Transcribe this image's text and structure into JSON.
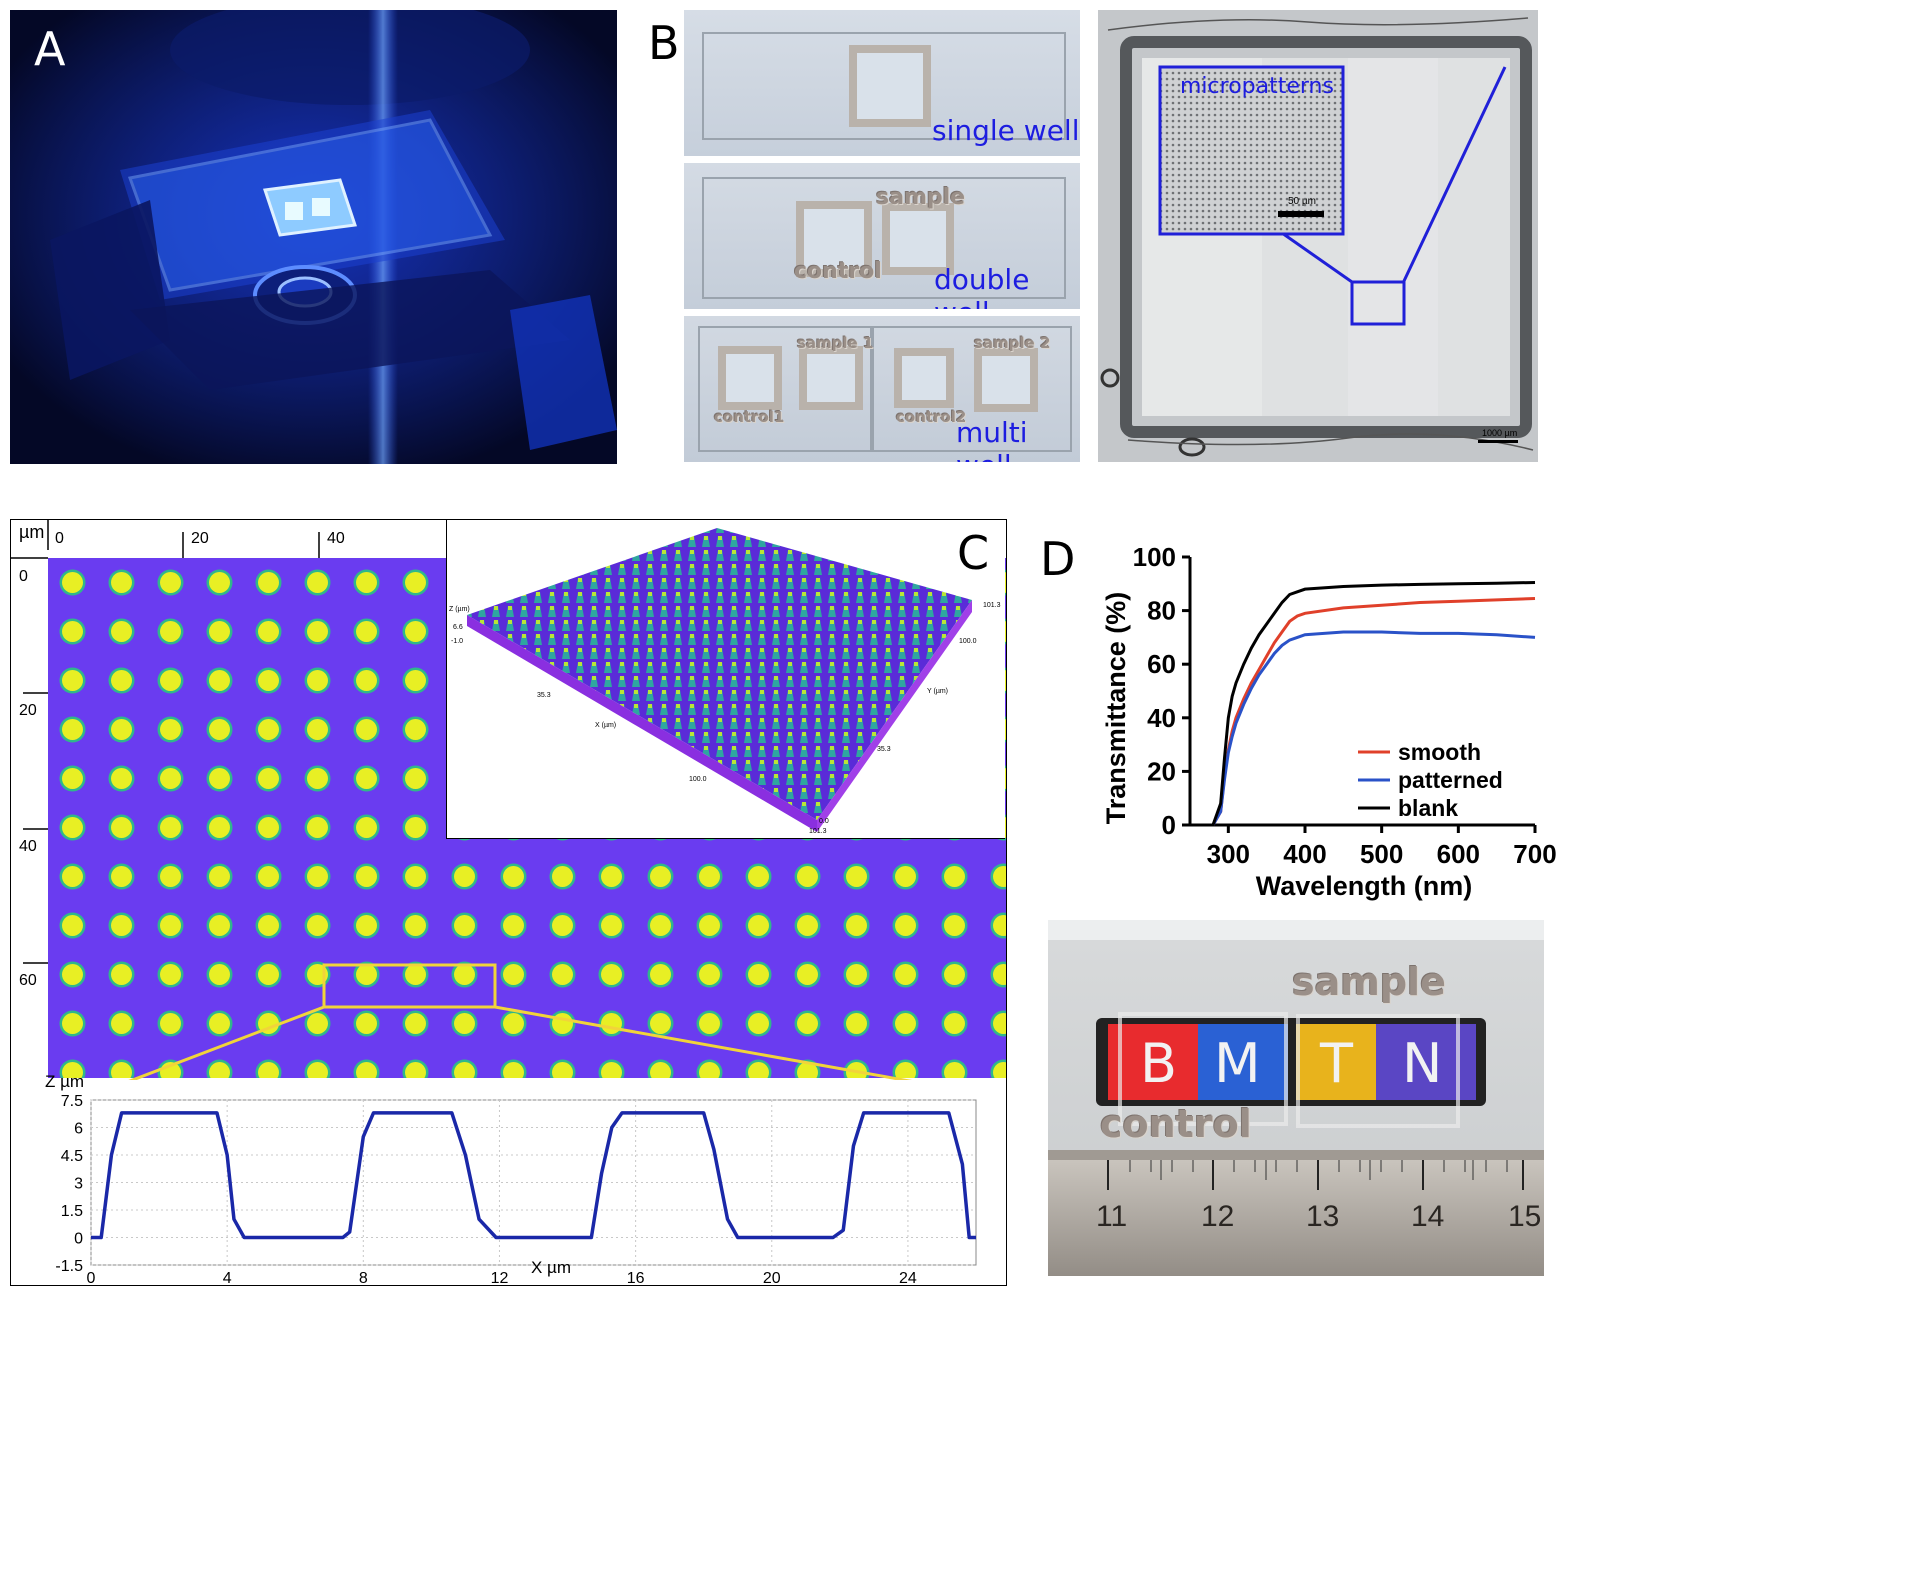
{
  "panels": {
    "a": {
      "letter": "A"
    },
    "b": {
      "letter": "B",
      "slides": [
        {
          "label": "single well"
        },
        {
          "label": "double well",
          "engravings": [
            "sample",
            "control"
          ]
        },
        {
          "label": "multi well",
          "engravings": [
            "sample 1",
            "sample 2",
            "control1",
            "control2"
          ]
        }
      ],
      "micrograph": {
        "inset_label": "micropatterns",
        "inset_scale": "50 µm",
        "scale": "1000 µm"
      }
    },
    "c": {
      "letter": "C",
      "ruler_unit": "µm",
      "ruler_x_ticks": [
        "0",
        "20",
        "40"
      ],
      "ruler_y_ticks": [
        "0",
        "20",
        "40",
        "60"
      ],
      "surface3d": {
        "z_axis_label": "Z (µm)",
        "x_axis_label": "X (µm)",
        "y_axis_label": "Y (µm)",
        "z_ticks": [
          "6.6",
          "-1.0"
        ],
        "x_ticks": [
          "35.3",
          "100.0"
        ],
        "y_ticks": [
          "101.3",
          "100.0",
          "35.3"
        ],
        "corner_values": [
          "101.3",
          "0.0"
        ]
      },
      "profile": {
        "z_label": "Z µm",
        "x_label": "X µm"
      }
    },
    "d": {
      "letter": "D",
      "photo_engravings": [
        "sample",
        "control"
      ],
      "photo_letters": [
        "B",
        "M",
        "T",
        "N"
      ],
      "ruler_ticks": [
        "11",
        "12",
        "13",
        "14",
        "15"
      ]
    }
  },
  "chart_data": [
    {
      "type": "line",
      "panel": "D",
      "xlabel": "Wavelength (nm)",
      "ylabel": "Transmittance (%)",
      "xlim": [
        250,
        700
      ],
      "ylim": [
        0,
        100
      ],
      "xticks": [
        300,
        400,
        500,
        600,
        700
      ],
      "yticks": [
        0,
        20,
        40,
        60,
        80,
        100
      ],
      "legend_position": "bottom-right",
      "x": [
        250,
        280,
        290,
        295,
        300,
        305,
        310,
        320,
        330,
        340,
        350,
        360,
        370,
        380,
        390,
        400,
        450,
        500,
        550,
        600,
        650,
        700
      ],
      "series": [
        {
          "name": "smooth",
          "color": "#e0402a",
          "values": [
            0,
            0,
            5,
            18,
            28,
            35,
            40,
            47,
            53,
            58,
            63,
            68,
            72,
            76,
            78,
            79,
            81,
            82,
            83,
            83.5,
            84,
            84.5
          ]
        },
        {
          "name": "patterned",
          "color": "#2a52c8",
          "values": [
            0,
            0,
            5,
            17,
            27,
            33,
            38,
            45,
            51,
            56,
            60,
            64,
            67,
            69,
            70,
            71,
            72,
            72,
            71.5,
            71.5,
            71,
            70
          ]
        },
        {
          "name": "blank",
          "color": "#000000",
          "values": [
            0,
            0,
            8,
            25,
            40,
            48,
            53,
            60,
            66,
            71,
            75,
            79,
            83,
            86,
            87,
            88,
            89,
            89.5,
            89.8,
            90,
            90.2,
            90.5
          ]
        }
      ]
    },
    {
      "type": "line",
      "panel": "C",
      "xlabel": "X µm",
      "ylabel": "Z µm",
      "xlim": [
        0,
        26
      ],
      "ylim": [
        -1.5,
        7.5
      ],
      "xticks": [
        0,
        4,
        8,
        12,
        16,
        20,
        24
      ],
      "yticks": [
        -1.5,
        0,
        1.5,
        3,
        4.5,
        6,
        7.5
      ],
      "grid": true,
      "x": [
        0,
        0.3,
        0.6,
        0.9,
        3.7,
        4.0,
        4.2,
        4.5,
        7.4,
        7.6,
        8.0,
        8.3,
        10.6,
        11.0,
        11.4,
        11.9,
        14.7,
        15.0,
        15.3,
        15.6,
        18.0,
        18.3,
        18.7,
        19.0,
        21.8,
        22.1,
        22.4,
        22.7,
        25.2,
        25.6,
        25.8,
        26.0
      ],
      "series": [
        {
          "name": "",
          "color": "#1a28a8",
          "values": [
            0,
            0,
            4.5,
            6.8,
            6.8,
            4.5,
            1.0,
            0,
            0,
            0.3,
            5.5,
            6.8,
            6.8,
            4.5,
            1.0,
            0,
            0,
            3.5,
            6.0,
            6.8,
            6.8,
            4.8,
            1.0,
            0,
            0,
            0.4,
            5.0,
            6.8,
            6.8,
            4.0,
            0,
            0
          ]
        }
      ]
    }
  ]
}
